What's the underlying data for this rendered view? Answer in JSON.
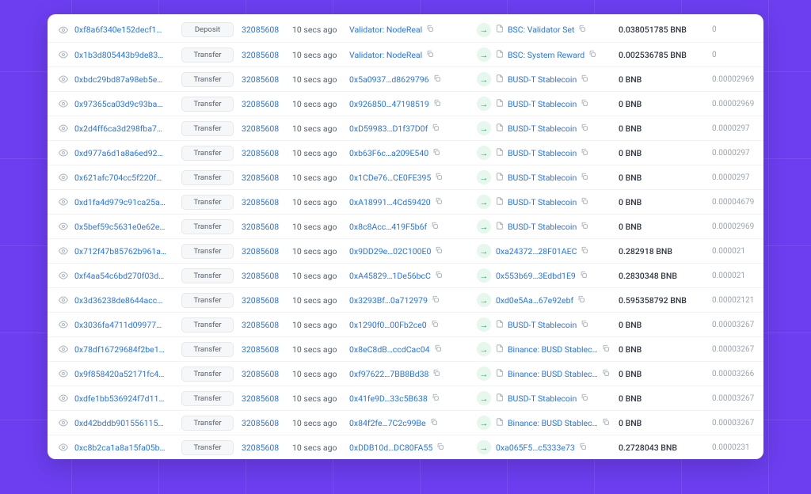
{
  "colors": {
    "link": "#2a74db",
    "muted": "#9aa4ae",
    "text": "#55606a",
    "pill_bg": "#f6f7f9",
    "pill_border": "#e6e8eb",
    "dir_bg": "#e6f7ee",
    "dir_fg": "#29a36a",
    "panel_bg": "#ffffff",
    "page_bg": "#6c3ef0"
  },
  "block": "32085608",
  "age": "10 secs ago",
  "rows": [
    {
      "hash": "0xf8a6f340e152decf1…",
      "method": "Deposit",
      "from": "Validator: NodeReal",
      "from_doc": false,
      "to": "BSC: Validator Set",
      "to_doc": true,
      "value": "0.038051785 BNB",
      "fee": "0"
    },
    {
      "hash": "0x1b3d805443b9de83…",
      "method": "Transfer",
      "from": "Validator: NodeReal",
      "from_doc": false,
      "to": "BSC: System Reward",
      "to_doc": true,
      "value": "0.002536785 BNB",
      "fee": "0"
    },
    {
      "hash": "0xbdc29bd87a98eb5e…",
      "method": "Transfer",
      "from": "0x5a0937…d8629796",
      "from_doc": false,
      "to": "BUSD-T Stablecoin",
      "to_doc": true,
      "value": "0 BNB",
      "fee": "0.00002969"
    },
    {
      "hash": "0x97365ca03d9c93ba…",
      "method": "Transfer",
      "from": "0x926850…47198519",
      "from_doc": false,
      "to": "BUSD-T Stablecoin",
      "to_doc": true,
      "value": "0 BNB",
      "fee": "0.00002969"
    },
    {
      "hash": "0x2d4ff6ca3d298fba7…",
      "method": "Transfer",
      "from": "0xD59983…D1f37D0f",
      "from_doc": false,
      "to": "BUSD-T Stablecoin",
      "to_doc": true,
      "value": "0 BNB",
      "fee": "0.0000297"
    },
    {
      "hash": "0xd977a6d1a8a6ed92…",
      "method": "Transfer",
      "from": "0xb63F6c…a209E540",
      "from_doc": false,
      "to": "BUSD-T Stablecoin",
      "to_doc": true,
      "value": "0 BNB",
      "fee": "0.0000297"
    },
    {
      "hash": "0x621afc704cc5f220f…",
      "method": "Transfer",
      "from": "0x1CDe76…CE0FE395",
      "from_doc": false,
      "to": "BUSD-T Stablecoin",
      "to_doc": true,
      "value": "0 BNB",
      "fee": "0.0000297"
    },
    {
      "hash": "0xd1fa4d979c91ca25a…",
      "method": "Transfer",
      "from": "0xA18991…4Cd59420",
      "from_doc": false,
      "to": "BUSD-T Stablecoin",
      "to_doc": true,
      "value": "0 BNB",
      "fee": "0.00004679"
    },
    {
      "hash": "0x5bef59c5631e0e62e…",
      "method": "Transfer",
      "from": "0x8c8Acc…419F5b6f",
      "from_doc": false,
      "to": "BUSD-T Stablecoin",
      "to_doc": true,
      "value": "0 BNB",
      "fee": "0.00002969"
    },
    {
      "hash": "0x712f47b85762b961a…",
      "method": "Transfer",
      "from": "0x9DD29e…02C100E0",
      "from_doc": false,
      "to": "0xa24372…28F01AEC",
      "to_doc": false,
      "value": "0.282918 BNB",
      "fee": "0.000021"
    },
    {
      "hash": "0xf4aa54c6bd270f03d…",
      "method": "Transfer",
      "from": "0xA45829…1De56bcC",
      "from_doc": false,
      "to": "0x553b69…3Edbd1E9",
      "to_doc": false,
      "value": "0.2830348 BNB",
      "fee": "0.000021"
    },
    {
      "hash": "0x3d36238de8644acc…",
      "method": "Transfer",
      "from": "0x3293Bf…0a712979",
      "from_doc": false,
      "to": "0xd0e5Aa…67e92ebf",
      "to_doc": false,
      "value": "0.595358792 BNB",
      "fee": "0.00002121"
    },
    {
      "hash": "0x3036fa4711d09977…",
      "method": "Transfer",
      "from": "0x1290f0…00Fb2ce0",
      "from_doc": false,
      "to": "BUSD-T Stablecoin",
      "to_doc": true,
      "value": "0 BNB",
      "fee": "0.00003267"
    },
    {
      "hash": "0x78df16729684f2be1…",
      "method": "Transfer",
      "from": "0x8eC8dB…ccdCac04",
      "from_doc": false,
      "to": "Binance: BUSD Stablec…",
      "to_doc": true,
      "value": "0 BNB",
      "fee": "0.00003267"
    },
    {
      "hash": "0x9f858420a52171fc4…",
      "method": "Transfer",
      "from": "0xf97622…7BB8Bd38",
      "from_doc": false,
      "to": "Binance: BUSD Stablec…",
      "to_doc": true,
      "value": "0 BNB",
      "fee": "0.00003266"
    },
    {
      "hash": "0xdfe1bb536924f7d11…",
      "method": "Transfer",
      "from": "0x41fe9D…33c5B638",
      "from_doc": false,
      "to": "BUSD-T Stablecoin",
      "to_doc": true,
      "value": "0 BNB",
      "fee": "0.00003267"
    },
    {
      "hash": "0xd42bddb901556115…",
      "method": "Transfer",
      "from": "0x84f2fe…7C2c99Be",
      "from_doc": false,
      "to": "Binance: BUSD Stablec…",
      "to_doc": true,
      "value": "0 BNB",
      "fee": "0.00003267"
    },
    {
      "hash": "0xc8b2ca1a8a15fa05b…",
      "method": "Transfer",
      "from": "0xDDB10d…DC80FA55",
      "from_doc": false,
      "to": "0xa065F5…c5333e73",
      "to_doc": false,
      "value": "0.2728043 BNB",
      "fee": "0.0000231"
    }
  ]
}
